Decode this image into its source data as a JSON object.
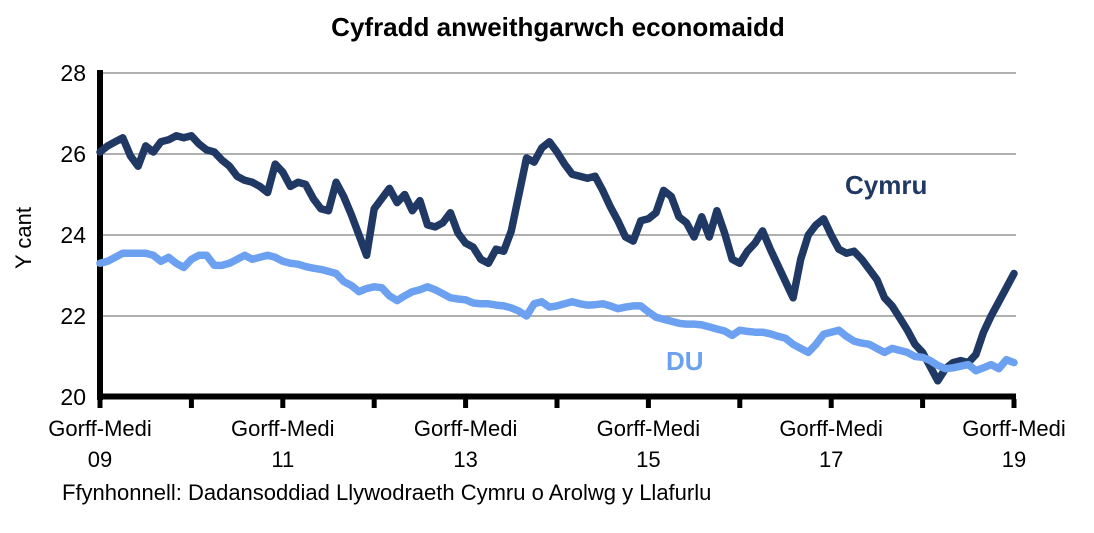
{
  "chart_data": {
    "type": "line",
    "title": "Cyfradd anweithgarwch economaidd",
    "xlabel": "",
    "ylabel": "Y cant",
    "ylim": [
      20,
      28
    ],
    "y_ticks": [
      28,
      26,
      24,
      22,
      20
    ],
    "grid": "horizontal-gridlines-on",
    "legend_position": "labels-next-to-lines",
    "x_tick_prefix": "Gorff-Medi",
    "x_tick_years": [
      "09",
      "11",
      "13",
      "15",
      "17",
      "19"
    ],
    "x_description": "Monthly rolling three-month periods from Gorff-Medi (Jul-Sep) 2009 to Gorff-Medi (Jul-Sep) 2019; minor tick each year, labels every two years",
    "grid_color": "#808080",
    "axis_color": "#000000",
    "series": [
      {
        "name": "Cymru",
        "color": "#1f3864",
        "values": [
          26.05,
          26.2,
          26.3,
          26.4,
          25.95,
          25.7,
          26.2,
          26.05,
          26.3,
          26.35,
          26.45,
          26.4,
          26.45,
          26.25,
          26.1,
          26.05,
          25.85,
          25.7,
          25.45,
          25.35,
          25.3,
          25.2,
          25.05,
          25.75,
          25.55,
          25.2,
          25.3,
          25.25,
          24.9,
          24.65,
          24.6,
          25.3,
          24.95,
          24.5,
          24.0,
          23.5,
          24.65,
          24.9,
          25.15,
          24.8,
          25.0,
          24.6,
          24.85,
          24.25,
          24.2,
          24.3,
          24.55,
          24.05,
          23.8,
          23.7,
          23.4,
          23.3,
          23.65,
          23.6,
          24.1,
          25.0,
          25.9,
          25.8,
          26.15,
          26.3,
          26.05,
          25.75,
          25.5,
          25.45,
          25.4,
          25.45,
          25.1,
          24.7,
          24.35,
          23.95,
          23.85,
          24.35,
          24.4,
          24.55,
          25.1,
          24.95,
          24.45,
          24.3,
          23.95,
          24.45,
          23.95,
          24.6,
          24.05,
          23.4,
          23.3,
          23.6,
          23.8,
          24.1,
          23.65,
          23.25,
          22.85,
          22.45,
          23.4,
          24.0,
          24.25,
          24.4,
          24.0,
          23.65,
          23.55,
          23.6,
          23.4,
          23.15,
          22.9,
          22.45,
          22.25,
          21.95,
          21.65,
          21.3,
          21.1,
          20.75,
          20.4,
          20.7,
          20.85,
          20.9,
          20.85,
          21.05,
          21.6,
          22.0,
          22.35,
          22.7,
          23.05
        ]
      },
      {
        "name": "DU",
        "color": "#6ca0f0",
        "values": [
          23.3,
          23.35,
          23.45,
          23.55,
          23.55,
          23.55,
          23.55,
          23.5,
          23.35,
          23.45,
          23.3,
          23.2,
          23.4,
          23.5,
          23.5,
          23.25,
          23.25,
          23.3,
          23.4,
          23.5,
          23.4,
          23.45,
          23.5,
          23.45,
          23.35,
          23.3,
          23.28,
          23.22,
          23.18,
          23.15,
          23.1,
          23.05,
          22.85,
          22.75,
          22.6,
          22.68,
          22.72,
          22.7,
          22.5,
          22.38,
          22.5,
          22.6,
          22.65,
          22.72,
          22.65,
          22.55,
          22.45,
          22.42,
          22.4,
          22.32,
          22.3,
          22.3,
          22.27,
          22.25,
          22.2,
          22.12,
          22.0,
          22.3,
          22.35,
          22.22,
          22.25,
          22.3,
          22.35,
          22.3,
          22.27,
          22.28,
          22.3,
          22.25,
          22.18,
          22.22,
          22.25,
          22.25,
          22.1,
          21.97,
          21.92,
          21.87,
          21.82,
          21.8,
          21.8,
          21.78,
          21.73,
          21.68,
          21.63,
          21.52,
          21.65,
          21.62,
          21.6,
          21.6,
          21.56,
          21.5,
          21.45,
          21.3,
          21.2,
          21.1,
          21.3,
          21.55,
          21.6,
          21.65,
          21.5,
          21.38,
          21.33,
          21.3,
          21.2,
          21.1,
          21.2,
          21.15,
          21.1,
          21.0,
          20.98,
          20.9,
          20.78,
          20.7,
          20.72,
          20.76,
          20.8,
          20.65,
          20.72,
          20.8,
          20.7,
          20.92,
          20.85
        ]
      }
    ],
    "source": "Ffynhonnell: Dadansoddiad Llywodraeth Cymru o Arolwg y Llafurlu"
  }
}
